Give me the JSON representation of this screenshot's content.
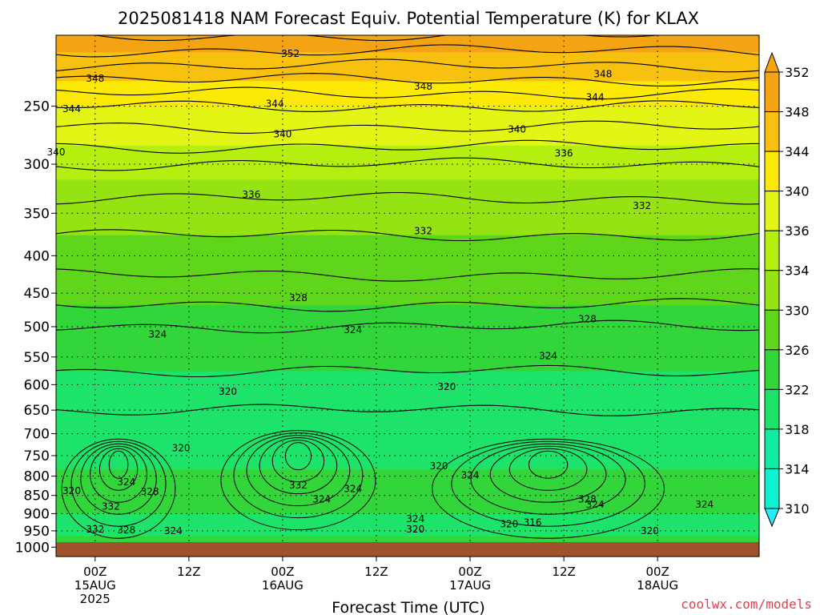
{
  "chart_data": {
    "type": "heatmap",
    "title": "2025081418 NAM Forecast Equiv. Potential Temperature (K) for KLAX",
    "xlabel": "Forecast Time (UTC)",
    "ylabel": "",
    "y_axis": {
      "scale": "pressure (inverted)",
      "ticks": [
        250,
        300,
        350,
        400,
        450,
        500,
        550,
        600,
        650,
        700,
        750,
        800,
        850,
        900,
        950,
        1000
      ],
      "range": [
        1030,
        200
      ]
    },
    "x_axis": {
      "range_hours": [
        -5,
        85
      ],
      "ticks": [
        {
          "hour": 0,
          "lines": [
            "00Z",
            "15AUG",
            "2025"
          ]
        },
        {
          "hour": 12,
          "lines": [
            "12Z"
          ]
        },
        {
          "hour": 24,
          "lines": [
            "00Z",
            "16AUG"
          ]
        },
        {
          "hour": 36,
          "lines": [
            "12Z"
          ]
        },
        {
          "hour": 48,
          "lines": [
            "00Z",
            "17AUG"
          ]
        },
        {
          "hour": 60,
          "lines": [
            "12Z"
          ]
        },
        {
          "hour": 72,
          "lines": [
            "00Z",
            "18AUG"
          ]
        }
      ]
    },
    "colorbar": {
      "ticks": [
        352,
        348,
        344,
        340,
        336,
        334,
        330,
        326,
        322,
        318,
        314,
        310
      ],
      "bands": [
        {
          "min": 350,
          "color": "#f4a413"
        },
        {
          "min": 346,
          "color": "#f8c10f"
        },
        {
          "min": 342,
          "color": "#fcea06"
        },
        {
          "min": 338,
          "color": "#e2f514"
        },
        {
          "min": 335,
          "color": "#b5ef10"
        },
        {
          "min": 332,
          "color": "#95e312"
        },
        {
          "min": 328,
          "color": "#5fd61b"
        },
        {
          "min": 324,
          "color": "#32d63a"
        },
        {
          "min": 320,
          "color": "#1ee36a"
        },
        {
          "min": 316,
          "color": "#12eca2"
        },
        {
          "min": 312,
          "color": "#0ff2d2"
        },
        {
          "min": 0,
          "color": "#22ecf4"
        }
      ]
    },
    "theta_e_profile": [
      {
        "p": 1000,
        "theta": 326
      },
      {
        "p": 950,
        "theta": 323
      },
      {
        "p": 900,
        "theta": 324
      },
      {
        "p": 850,
        "theta": 325
      },
      {
        "p": 800,
        "theta": 325
      },
      {
        "p": 750,
        "theta": 322
      },
      {
        "p": 700,
        "theta": 321
      },
      {
        "p": 650,
        "theta": 322
      },
      {
        "p": 600,
        "theta": 323
      },
      {
        "p": 550,
        "theta": 325
      },
      {
        "p": 500,
        "theta": 326
      },
      {
        "p": 450,
        "theta": 329
      },
      {
        "p": 400,
        "theta": 331
      },
      {
        "p": 350,
        "theta": 333
      },
      {
        "p": 300,
        "theta": 336
      },
      {
        "p": 250,
        "theta": 342
      },
      {
        "p": 200,
        "theta": 352
      }
    ],
    "contour_labels": [
      {
        "text": "352",
        "hour": 25,
        "p": 212
      },
      {
        "text": "348",
        "hour": 0,
        "p": 229
      },
      {
        "text": "348",
        "hour": 42,
        "p": 235
      },
      {
        "text": "348",
        "hour": 65,
        "p": 226
      },
      {
        "text": "344",
        "hour": -3,
        "p": 252
      },
      {
        "text": "344",
        "hour": 23,
        "p": 248
      },
      {
        "text": "344",
        "hour": 64,
        "p": 243
      },
      {
        "text": "340",
        "hour": -5,
        "p": 289
      },
      {
        "text": "340",
        "hour": 24,
        "p": 273
      },
      {
        "text": "340",
        "hour": 54,
        "p": 269
      },
      {
        "text": "336",
        "hour": 60,
        "p": 290
      },
      {
        "text": "336",
        "hour": 20,
        "p": 330
      },
      {
        "text": "332",
        "hour": 70,
        "p": 342
      },
      {
        "text": "332",
        "hour": 42,
        "p": 370
      },
      {
        "text": "328",
        "hour": 26,
        "p": 457
      },
      {
        "text": "328",
        "hour": 63,
        "p": 488
      },
      {
        "text": "324",
        "hour": 8,
        "p": 512
      },
      {
        "text": "324",
        "hour": 33,
        "p": 505
      },
      {
        "text": "324",
        "hour": 58,
        "p": 548
      },
      {
        "text": "320",
        "hour": 17,
        "p": 613
      },
      {
        "text": "320",
        "hour": 45,
        "p": 604
      },
      {
        "text": "320",
        "hour": 11,
        "p": 732
      },
      {
        "text": "320",
        "hour": -3,
        "p": 838
      },
      {
        "text": "324",
        "hour": 4,
        "p": 815
      },
      {
        "text": "328",
        "hour": 7,
        "p": 840
      },
      {
        "text": "332",
        "hour": 2,
        "p": 880
      },
      {
        "text": "332",
        "hour": 26,
        "p": 823
      },
      {
        "text": "324",
        "hour": 29,
        "p": 860
      },
      {
        "text": "324",
        "hour": 33,
        "p": 833
      },
      {
        "text": "320",
        "hour": 44,
        "p": 775
      },
      {
        "text": "324",
        "hour": 48,
        "p": 798
      },
      {
        "text": "332",
        "hour": 0,
        "p": 945
      },
      {
        "text": "328",
        "hour": 4,
        "p": 948
      },
      {
        "text": "324",
        "hour": 10,
        "p": 950
      },
      {
        "text": "324",
        "hour": 41,
        "p": 915
      },
      {
        "text": "320",
        "hour": 41,
        "p": 945
      },
      {
        "text": "320",
        "hour": 53,
        "p": 930
      },
      {
        "text": "316",
        "hour": 56,
        "p": 925
      },
      {
        "text": "328",
        "hour": 63,
        "p": 860
      },
      {
        "text": "324",
        "hour": 64,
        "p": 875
      },
      {
        "text": "324",
        "hour": 78,
        "p": 875
      },
      {
        "text": "320",
        "hour": 71,
        "p": 950
      }
    ],
    "grid": true,
    "surface_color": "#a0522d"
  },
  "credit": {
    "text": "coolwx.com/models",
    "color": "#e0404a"
  }
}
